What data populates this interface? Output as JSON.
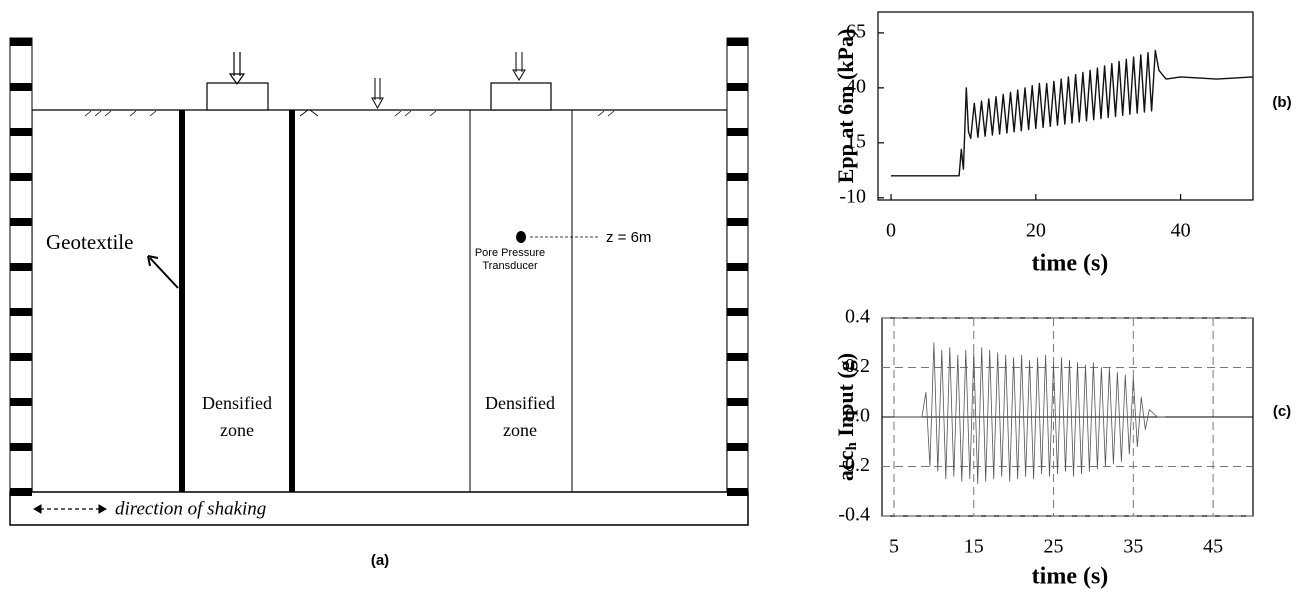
{
  "diagram": {
    "geotextile": "Geotextile",
    "densified_left": [
      "Densified",
      "zone"
    ],
    "densified_right": [
      "Densified",
      "zone"
    ],
    "transducer": [
      "Pore Pressure",
      "Transducer"
    ],
    "depth": "z = 6m",
    "shaking": "direction of shaking",
    "panel_label": "(a)"
  },
  "chart_data": [
    {
      "type": "line",
      "panel_label": "(b)",
      "xlabel": "time (s)",
      "ylabel": "Epp at 6m (kPa)",
      "xlim": [
        -1.8,
        50
      ],
      "ylim": [
        -11,
        74.5
      ],
      "xticks": [
        0,
        20,
        40
      ],
      "yticks": [
        -10,
        15,
        40,
        65
      ],
      "grid": false,
      "x": [
        0,
        9,
        9.4,
        9.7,
        10,
        10.4,
        10.7,
        11,
        11.5,
        12,
        12.5,
        13,
        13.5,
        14,
        14.5,
        15,
        15.5,
        16,
        16.5,
        17,
        17.5,
        18,
        18.5,
        19,
        19.5,
        20,
        20.5,
        21,
        21.5,
        22,
        22.5,
        23,
        23.5,
        24,
        24.5,
        25,
        25.5,
        26,
        26.5,
        27,
        27.5,
        28,
        28.5,
        29,
        29.5,
        30,
        30.5,
        31,
        31.5,
        32,
        32.5,
        33,
        33.5,
        34,
        34.5,
        35,
        35.5,
        36,
        36.5,
        37,
        38,
        40,
        45,
        50
      ],
      "series": [
        {
          "color": "#111111",
          "values": [
            0,
            0,
            0,
            12,
            3,
            40,
            20,
            17,
            33,
            17.5,
            34,
            18,
            35,
            18.5,
            36,
            19,
            37,
            19.5,
            38,
            20,
            39,
            20.5,
            40,
            21,
            41,
            21.5,
            42,
            22,
            42,
            22.5,
            43,
            23,
            44,
            23.5,
            45,
            24,
            46,
            24.5,
            47,
            25,
            48,
            25.5,
            49,
            26,
            50,
            26.5,
            51,
            27,
            52,
            27.5,
            53,
            28,
            54,
            28.5,
            55,
            29,
            56,
            29.5,
            57,
            48,
            44,
            45,
            44,
            45
          ]
        }
      ]
    },
    {
      "type": "line",
      "panel_label": "(c)",
      "xlabel": "time (s)",
      "ylabel": "acc",
      "ylabel_sub": "h",
      "ylabel_rest": " Input (g)",
      "xlim": [
        3.5,
        50
      ],
      "ylim": [
        -0.4,
        0.4
      ],
      "xticks": [
        5,
        15,
        25,
        35,
        45
      ],
      "yticks": [
        {
          "value": 0.4,
          "label": "0.4"
        },
        {
          "value": 0.2,
          "label": "0.2"
        },
        {
          "value": 0,
          "label": "0.0"
        },
        {
          "value": -0.2,
          "label": "-0.2"
        },
        {
          "value": -0.4,
          "label": "-0.4"
        }
      ],
      "grid": true,
      "x": [
        5,
        8.5,
        9,
        9.5,
        10,
        10.5,
        11,
        11.5,
        12,
        12.5,
        13,
        13.5,
        14,
        14.5,
        15,
        15.5,
        16,
        16.5,
        17,
        17.5,
        18,
        18.5,
        19,
        19.5,
        20,
        20.5,
        21,
        21.5,
        22,
        22.5,
        23,
        23.5,
        24,
        24.5,
        25,
        25.5,
        26,
        26.5,
        27,
        27.5,
        28,
        28.5,
        29,
        29.5,
        30,
        30.5,
        31,
        31.5,
        32,
        32.5,
        33,
        33.5,
        34,
        34.5,
        35,
        35.5,
        36,
        36.5,
        37,
        38,
        39
      ],
      "series": [
        {
          "color": "#555555",
          "values": [
            0,
            0,
            0.1,
            -0.2,
            0.3,
            -0.22,
            0.27,
            -0.25,
            0.28,
            -0.24,
            0.25,
            -0.26,
            0.27,
            -0.25,
            0.26,
            -0.27,
            0.28,
            -0.26,
            0.27,
            -0.25,
            0.26,
            -0.24,
            0.25,
            -0.26,
            0.24,
            -0.25,
            0.25,
            -0.24,
            0.23,
            -0.25,
            0.24,
            -0.23,
            0.25,
            -0.24,
            0.22,
            -0.23,
            0.24,
            -0.22,
            0.23,
            -0.24,
            0.22,
            -0.23,
            0.21,
            -0.22,
            0.22,
            -0.21,
            0.2,
            -0.2,
            0.2,
            -0.19,
            0.18,
            -0.18,
            0.17,
            -0.15,
            0.16,
            -0.12,
            0.08,
            -0.05,
            0.03,
            0,
            0
          ]
        }
      ]
    }
  ]
}
